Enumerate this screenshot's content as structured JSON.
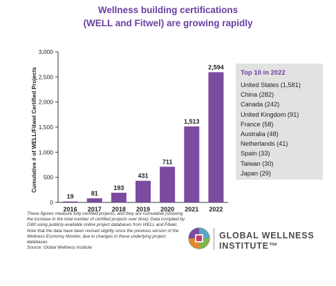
{
  "title_line1": "Wellness building certifications",
  "title_line2": "(WELL and Fitwel) are growing rapidly",
  "chart_data": {
    "type": "bar",
    "categories": [
      "2016",
      "2017",
      "2018",
      "2019",
      "2020",
      "2021",
      "2022"
    ],
    "values": [
      19,
      81,
      193,
      431,
      711,
      1513,
      2594
    ],
    "value_labels": [
      "19",
      "81",
      "193",
      "431",
      "711",
      "1,513",
      "2,594"
    ],
    "ylabel": "Cumulative # of WELL/Fitwel Certified Projects",
    "ylim": [
      0,
      3000
    ],
    "yticks": [
      0,
      500,
      1000,
      1500,
      2000,
      2500,
      3000
    ],
    "ytick_labels": [
      "0",
      "500",
      "1,000",
      "1,500",
      "2,000",
      "2,500",
      "3,000"
    ],
    "bar_color": "#7b4ba0",
    "grid": false
  },
  "top10": {
    "title": "Top 10 in 2022",
    "items": [
      "United States (1,581)",
      "China (282)",
      "Canada (242)",
      "United Kingdom (91)",
      "France (58)",
      "Australia (48)",
      "Netherlands (41)",
      "Spain (33)",
      "Taiwan (30)",
      "Japan (29)"
    ]
  },
  "footnote": {
    "text": "These figures measure fully certified projects, and they are cumulative (showing the increase in the total number of certified projects over time). Data compiled by GWI using publicly-available online project databases from WELL and Fitwel. Note that the data have been revised slightly since the previous version of the Wellness Economy Monitor, due to changes in these underlying project databases.",
    "source": "Source: Global Wellness Institute"
  },
  "logo": {
    "line1": "GLOBAL WELLNESS",
    "line2": "INSTITUTE™"
  },
  "colors": {
    "accent": "#6b3fa0",
    "bar": "#7b4ba0",
    "panel": "#e2e2e3"
  }
}
